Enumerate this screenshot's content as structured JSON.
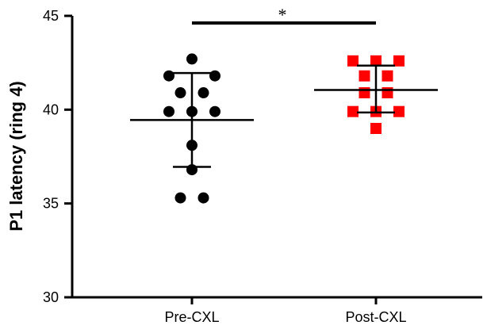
{
  "chart_data": {
    "type": "scatter",
    "ylabel": "P1 latency (ring 4)",
    "ylim": [
      30,
      45
    ],
    "yticks": [
      30,
      35,
      40,
      45
    ],
    "categories": [
      "Pre-CXL",
      "Post-CXL"
    ],
    "grid": false,
    "significance": {
      "label": "*",
      "between": [
        "Pre-CXL",
        "Post-CXL"
      ]
    },
    "series": [
      {
        "category": "Pre-CXL",
        "marker": "circle",
        "color": "#000000",
        "points": [
          {
            "offset": 0,
            "y": 42.7
          },
          {
            "offset": -1,
            "y": 41.8
          },
          {
            "offset": 1,
            "y": 41.8
          },
          {
            "offset": -0.5,
            "y": 40.9
          },
          {
            "offset": 0.5,
            "y": 40.9
          },
          {
            "offset": -1,
            "y": 39.9
          },
          {
            "offset": 0,
            "y": 39.9
          },
          {
            "offset": 1,
            "y": 39.9
          },
          {
            "offset": 0,
            "y": 38.1
          },
          {
            "offset": 0,
            "y": 36.8
          },
          {
            "offset": -0.5,
            "y": 35.3
          },
          {
            "offset": 0.5,
            "y": 35.3
          }
        ],
        "mean": 39.45,
        "sd_upper": 41.95,
        "sd_lower": 36.95
      },
      {
        "category": "Post-CXL",
        "marker": "square",
        "color": "#ff0000",
        "points": [
          {
            "offset": -1,
            "y": 42.6
          },
          {
            "offset": 0,
            "y": 42.6
          },
          {
            "offset": 1,
            "y": 42.6
          },
          {
            "offset": -0.5,
            "y": 41.8
          },
          {
            "offset": 0.5,
            "y": 41.8
          },
          {
            "offset": -0.5,
            "y": 40.9
          },
          {
            "offset": 0.5,
            "y": 40.9
          },
          {
            "offset": -1,
            "y": 39.9
          },
          {
            "offset": 0,
            "y": 39.9
          },
          {
            "offset": 1,
            "y": 39.9
          },
          {
            "offset": 0,
            "y": 39.0
          }
        ],
        "mean": 41.05,
        "sd_upper": 42.35,
        "sd_lower": 39.85
      }
    ]
  }
}
